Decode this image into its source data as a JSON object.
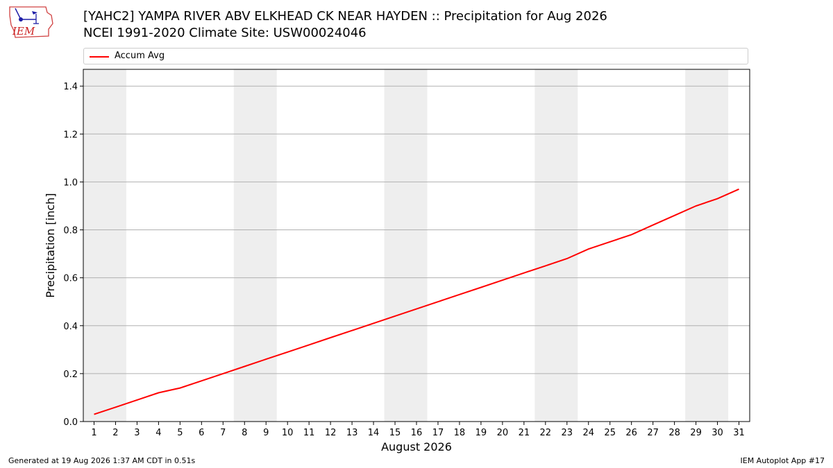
{
  "header": {
    "logo_text": "IEM",
    "title_line1": "[YAHC2] YAMPA RIVER ABV ELKHEAD CK NEAR HAYDEN :: Precipitation for Aug 2026",
    "title_line2": "NCEI 1991-2020 Climate Site: USW00024046"
  },
  "legend": {
    "label": "Accum Avg"
  },
  "footer": {
    "left": "Generated at 19 Aug 2026 1:37 AM CDT in 0.51s",
    "right": "IEM Autoplot App #17"
  },
  "colors": {
    "series": "#ff0000",
    "weekend_band": "#eeeeee",
    "grid": "#b0b0b0"
  },
  "chart_data": {
    "type": "line",
    "xlabel": "August 2026",
    "ylabel": "Precipitation [inch]",
    "xlim": [
      0.5,
      31.5
    ],
    "ylim": [
      0.0,
      1.47
    ],
    "yticks": [
      0.0,
      0.2,
      0.4,
      0.6,
      0.8,
      1.0,
      1.2,
      1.4
    ],
    "ytick_labels": [
      "0.0",
      "0.2",
      "0.4",
      "0.6",
      "0.8",
      "1.0",
      "1.2",
      "1.4"
    ],
    "x": [
      1,
      2,
      3,
      4,
      5,
      6,
      7,
      8,
      9,
      10,
      11,
      12,
      13,
      14,
      15,
      16,
      17,
      18,
      19,
      20,
      21,
      22,
      23,
      24,
      25,
      26,
      27,
      28,
      29,
      30,
      31
    ],
    "x_labels": [
      "1",
      "2",
      "3",
      "4",
      "5",
      "6",
      "7",
      "8",
      "9",
      "10",
      "11",
      "12",
      "13",
      "14",
      "15",
      "16",
      "17",
      "18",
      "19",
      "20",
      "21",
      "22",
      "23",
      "24",
      "25",
      "26",
      "27",
      "28",
      "29",
      "30",
      "31"
    ],
    "shaded_ranges": [
      [
        0.5,
        2.5
      ],
      [
        7.5,
        9.5
      ],
      [
        14.5,
        16.5
      ],
      [
        21.5,
        23.5
      ],
      [
        28.5,
        30.5
      ]
    ],
    "grid": "y",
    "legend_position": "top",
    "series": [
      {
        "name": "Accum Avg",
        "values": [
          0.03,
          0.06,
          0.09,
          0.12,
          0.14,
          0.17,
          0.2,
          0.23,
          0.26,
          0.29,
          0.32,
          0.35,
          0.38,
          0.41,
          0.44,
          0.47,
          0.5,
          0.53,
          0.56,
          0.59,
          0.62,
          0.65,
          0.68,
          0.72,
          0.75,
          0.78,
          0.82,
          0.86,
          0.9,
          0.93,
          0.97
        ]
      }
    ]
  }
}
